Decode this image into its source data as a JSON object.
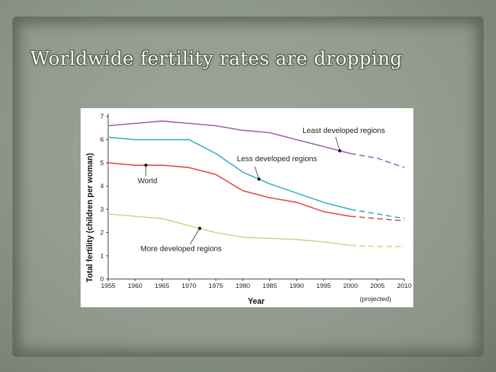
{
  "slide": {
    "title": "Worldwide fertility rates are dropping"
  },
  "chart_data": {
    "type": "line",
    "title": "",
    "xlabel": "Year",
    "ylabel": "Total fertility (children per woman)",
    "x_note": "(projected)",
    "xlim": [
      1955,
      2010
    ],
    "ylim": [
      0,
      7
    ],
    "x_ticks": [
      1955,
      1960,
      1965,
      1970,
      1975,
      1980,
      1985,
      1990,
      1995,
      2000,
      2005,
      2010
    ],
    "y_ticks": [
      0,
      1,
      2,
      3,
      4,
      5,
      6,
      7
    ],
    "projected_from": 2000,
    "grid": false,
    "series": [
      {
        "name": "Least developed regions",
        "color": "#a06aaf",
        "x": [
          1955,
          1960,
          1965,
          1970,
          1975,
          1980,
          1985,
          1990,
          1995,
          2000,
          2005,
          2010
        ],
        "values": [
          6.6,
          6.7,
          6.8,
          6.7,
          6.6,
          6.4,
          6.3,
          6.0,
          5.7,
          5.4,
          5.2,
          4.8
        ]
      },
      {
        "name": "Less developed regions",
        "color": "#44b2c2",
        "x": [
          1955,
          1960,
          1965,
          1970,
          1975,
          1980,
          1985,
          1990,
          1995,
          2000,
          2005,
          2010
        ],
        "values": [
          6.1,
          6.0,
          6.0,
          6.0,
          5.4,
          4.6,
          4.1,
          3.7,
          3.3,
          3.0,
          2.8,
          2.6
        ]
      },
      {
        "name": "World",
        "color": "#e0524e",
        "x": [
          1955,
          1960,
          1965,
          1970,
          1975,
          1980,
          1985,
          1990,
          1995,
          2000,
          2005,
          2010
        ],
        "values": [
          5.0,
          4.9,
          4.9,
          4.8,
          4.5,
          3.8,
          3.5,
          3.3,
          2.9,
          2.7,
          2.6,
          2.5
        ]
      },
      {
        "name": "More developed regions",
        "color": "#c8dc8c",
        "x": [
          1955,
          1960,
          1965,
          1970,
          1975,
          1980,
          1985,
          1990,
          1995,
          2000,
          2005,
          2010
        ],
        "values": [
          2.8,
          2.7,
          2.6,
          2.3,
          2.0,
          1.8,
          1.75,
          1.7,
          1.6,
          1.45,
          1.4,
          1.4
        ]
      }
    ],
    "annotations": [
      {
        "text": "Least developed regions",
        "series": "Least developed regions",
        "x": 1998
      },
      {
        "text": "Less developed regions",
        "series": "Less developed regions",
        "x": 1983
      },
      {
        "text": "World",
        "series": "World",
        "x": 1962
      },
      {
        "text": "More developed regions",
        "series": "More developed regions",
        "x": 1972
      }
    ]
  }
}
